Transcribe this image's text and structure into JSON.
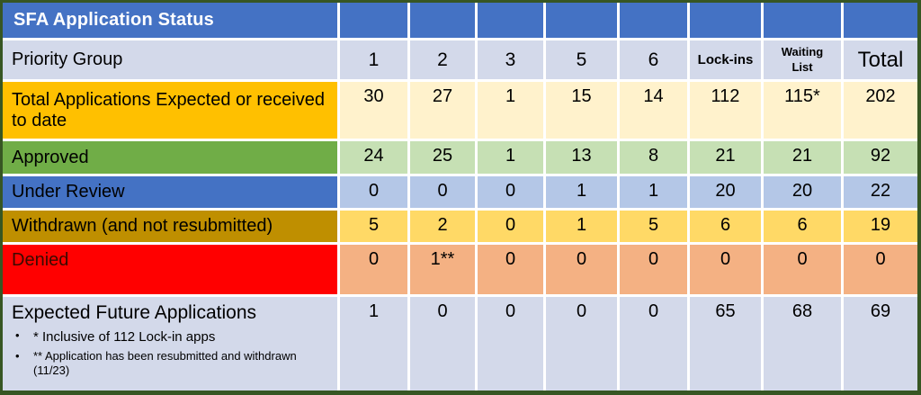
{
  "table": {
    "title": "SFA Application Status",
    "priority_label": "Priority Group",
    "columns": [
      "1",
      "2",
      "3",
      "5",
      "6",
      "Lock-ins",
      "Waiting List",
      "Total"
    ],
    "rows": [
      {
        "label": "Total Applications Expected or received to date",
        "values": [
          "30",
          "27",
          "1",
          "15",
          "14",
          "112",
          "115*",
          "202"
        ]
      },
      {
        "label": "Approved",
        "values": [
          "24",
          "25",
          "1",
          "13",
          "8",
          "21",
          "21",
          "92"
        ]
      },
      {
        "label": "Under Review",
        "values": [
          "0",
          "0",
          "0",
          "1",
          "1",
          "20",
          "20",
          "22"
        ]
      },
      {
        "label": "Withdrawn (and not resubmitted)",
        "values": [
          "5",
          "2",
          "0",
          "1",
          "5",
          "6",
          "6",
          "19"
        ]
      },
      {
        "label": "Denied",
        "values": [
          "0",
          "1**",
          "0",
          "0",
          "0",
          "0",
          "0",
          "0"
        ]
      },
      {
        "label": "Expected Future Applications",
        "values": [
          "1",
          "0",
          "0",
          "0",
          "0",
          "65",
          "68",
          "69"
        ],
        "footnotes": [
          "* Inclusive of 112 Lock-in apps",
          "** Application has been resubmitted and withdrawn (11/23)"
        ]
      }
    ],
    "colors": {
      "header_blue": "#4472C4",
      "band_lavender": "#D3D9EA",
      "total_label_orange": "#FFC000",
      "total_cells_cream": "#FFF2CC",
      "approved_green": "#70AD47",
      "approved_cells_light_green": "#C6E0B4",
      "under_review_blue": "#4472C4",
      "under_review_cells_light_blue": "#B4C7E7",
      "withdrawn_dark_gold": "#BF8F00",
      "withdrawn_cells_yellow": "#FFD966",
      "denied_red": "#FF0000",
      "denied_text_dark": "#3A0A00",
      "denied_cells_salmon": "#F4B183",
      "outer_border_green": "#375623"
    }
  }
}
